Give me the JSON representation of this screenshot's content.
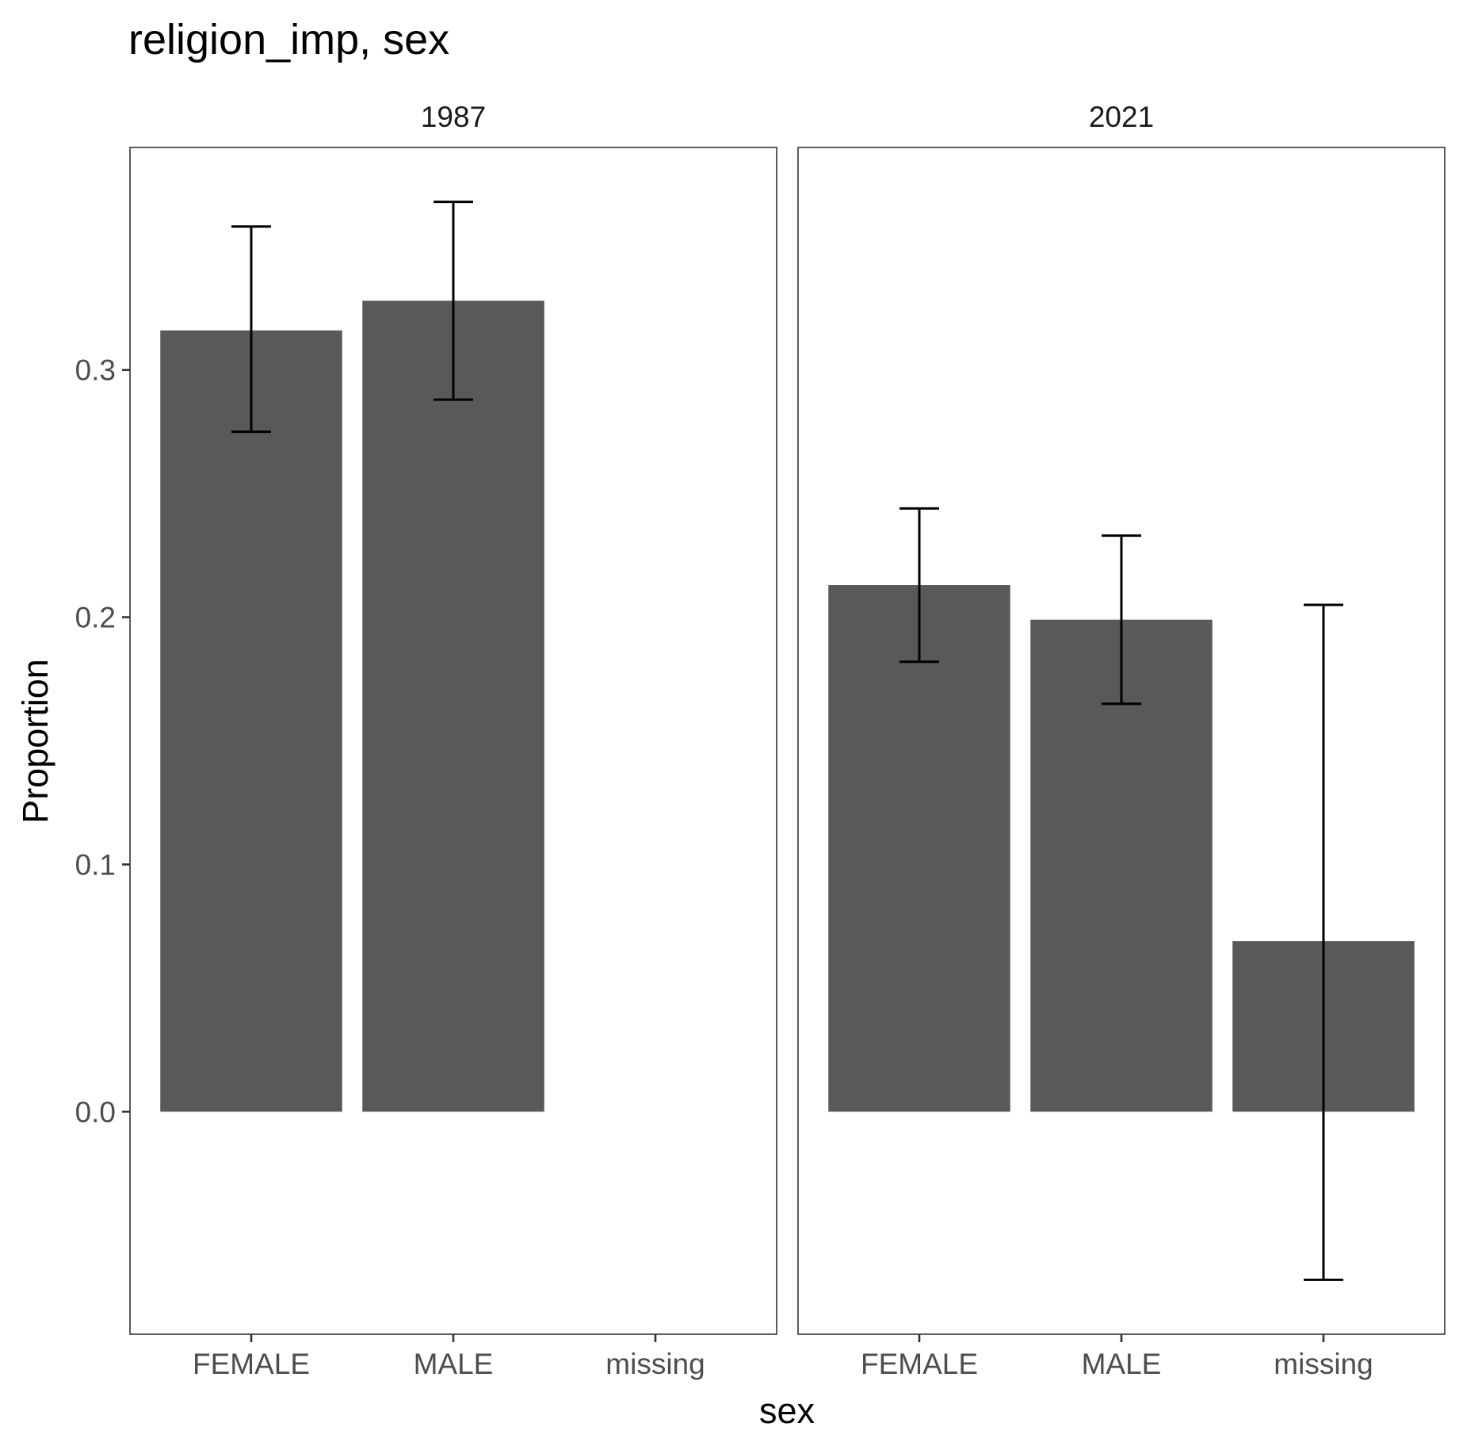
{
  "chart_data": {
    "type": "bar",
    "title": "religion_imp, sex",
    "xlabel": "sex",
    "ylabel": "Proportion",
    "categories": [
      "FEMALE",
      "MALE",
      "missing"
    ],
    "y_ticks": [
      0.0,
      0.1,
      0.2,
      0.3
    ],
    "y_tick_labels": [
      "0.0",
      "0.1",
      "0.2",
      "0.3"
    ],
    "ylim": [
      -0.09,
      0.39
    ],
    "grid": false,
    "bar_color": "#595959",
    "panels": [
      {
        "label": "1987",
        "bars": [
          {
            "category": "FEMALE",
            "value": 0.316,
            "lower": 0.275,
            "upper": 0.358
          },
          {
            "category": "MALE",
            "value": 0.328,
            "lower": 0.288,
            "upper": 0.368
          },
          {
            "category": "missing",
            "value": null,
            "lower": null,
            "upper": null
          }
        ]
      },
      {
        "label": "2021",
        "bars": [
          {
            "category": "FEMALE",
            "value": 0.213,
            "lower": 0.182,
            "upper": 0.244
          },
          {
            "category": "MALE",
            "value": 0.199,
            "lower": 0.165,
            "upper": 0.233
          },
          {
            "category": "missing",
            "value": 0.069,
            "lower": -0.068,
            "upper": 0.205
          }
        ]
      }
    ]
  }
}
